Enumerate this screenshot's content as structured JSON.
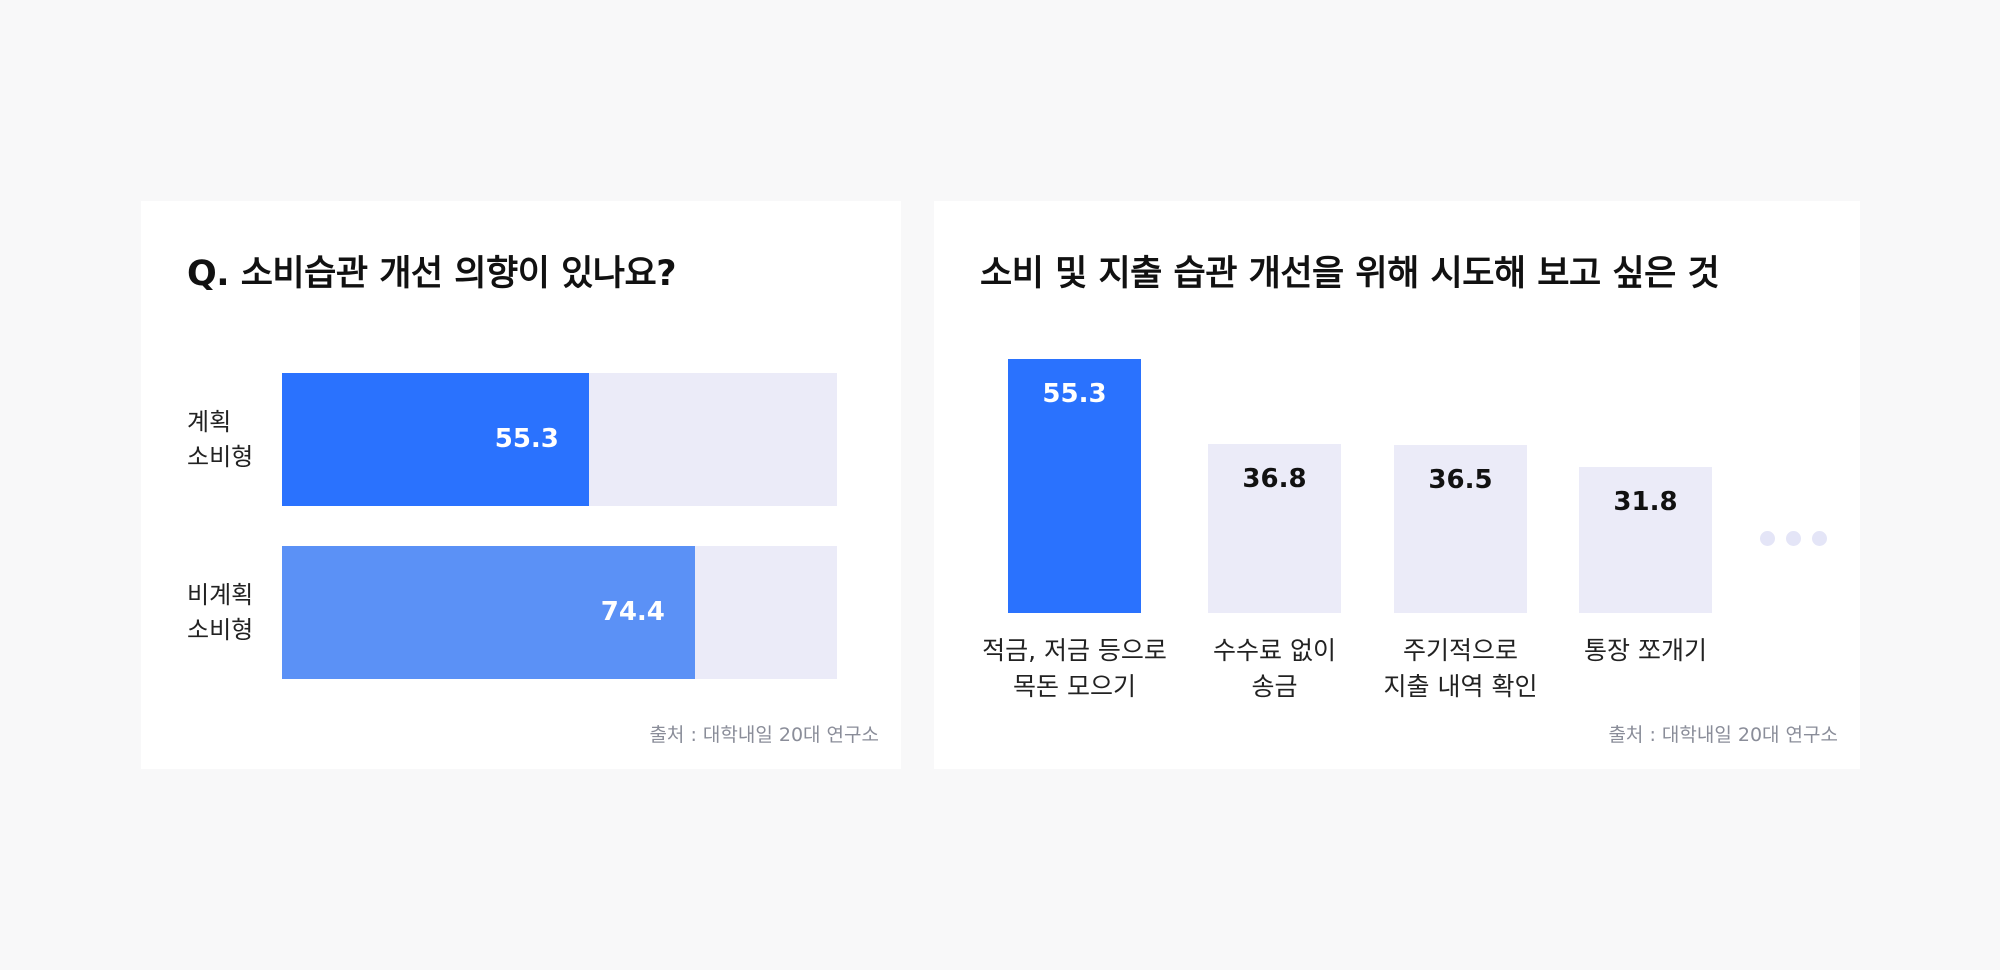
{
  "left_card": {
    "title": "Q. 소비습관 개선 의향이 있나요?",
    "source": "출처 : 대학내일 20대 연구소",
    "chart_data": {
      "type": "bar",
      "orientation": "horizontal",
      "categories": [
        "계획\n소비형",
        "비계획\n소비형"
      ],
      "values": [
        55.3,
        74.4
      ],
      "xlim": [
        0,
        100
      ],
      "colors": [
        "#2a72fe",
        "#5b91f6"
      ],
      "track_color": "#ebebf8",
      "value_label_color": "#ffffff"
    }
  },
  "right_card": {
    "title": "소비 및 지출 습관 개선을 위해 시도해 보고 싶은 것",
    "source": "출처 : 대학내일 20대 연구소",
    "chart_data": {
      "type": "bar",
      "orientation": "vertical",
      "categories": [
        "적금, 저금 등으로\n목돈 모으기",
        "수수료 없이\n송금",
        "주기적으로\n지출 내역 확인",
        "통장 쪼개기"
      ],
      "values": [
        55.3,
        36.8,
        36.5,
        31.8
      ],
      "ylim": [
        0,
        55.3
      ],
      "bar_colors": [
        "#2a72fe",
        "#ebebf8",
        "#ebebf8",
        "#ebebf8"
      ],
      "value_label_colors": [
        "#ffffff",
        "#111111",
        "#111111",
        "#111111"
      ],
      "more_indicator": "ellipsis-dots"
    }
  }
}
